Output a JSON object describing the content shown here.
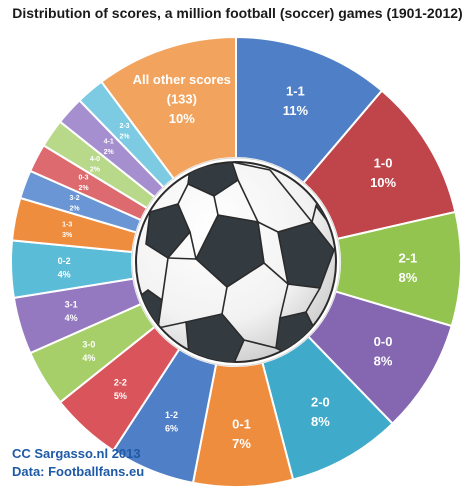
{
  "chart_data": {
    "type": "pie",
    "variant": "donut",
    "title": "Distribution of scores, a million football (soccer) games (1901-2012)",
    "slices": [
      {
        "label": "1-1",
        "value": 11,
        "pct_label": "11%",
        "color": "#4f7fc6"
      },
      {
        "label": "1-0",
        "value": 10,
        "pct_label": "10%",
        "color": "#c0454b"
      },
      {
        "label": "2-1",
        "value": 8,
        "pct_label": "8%",
        "color": "#92c44f"
      },
      {
        "label": "0-0",
        "value": 8,
        "pct_label": "8%",
        "color": "#8466b1"
      },
      {
        "label": "2-0",
        "value": 8,
        "pct_label": "8%",
        "color": "#3faac9"
      },
      {
        "label": "0-1",
        "value": 7,
        "pct_label": "7%",
        "color": "#ef8d3f"
      },
      {
        "label": "1-2",
        "value": 6,
        "pct_label": "6%",
        "color": "#4f7fc6"
      },
      {
        "label": "2-2",
        "value": 5,
        "pct_label": "5%",
        "color": "#d9555b"
      },
      {
        "label": "3-0",
        "value": 4,
        "pct_label": "4%",
        "color": "#a6cf6a"
      },
      {
        "label": "3-1",
        "value": 4,
        "pct_label": "4%",
        "color": "#9478c0"
      },
      {
        "label": "0-2",
        "value": 4,
        "pct_label": "4%",
        "color": "#5bbcd8"
      },
      {
        "label": "1-3",
        "value": 3,
        "pct_label": "3%",
        "color": "#ef8d3f"
      },
      {
        "label": "3-2",
        "value": 2,
        "pct_label": "2%",
        "color": "#6a96d6"
      },
      {
        "label": "0-3",
        "value": 2,
        "pct_label": "2%",
        "color": "#dc6a6e"
      },
      {
        "label": "4-0",
        "value": 2,
        "pct_label": "2%",
        "color": "#b9d98a"
      },
      {
        "label": "4-1",
        "value": 2,
        "pct_label": "2%",
        "color": "#a68fcf"
      },
      {
        "label": "2-3",
        "value": 2,
        "pct_label": "2%",
        "color": "#7ccbe3"
      },
      {
        "label": "All other scores",
        "sublabel": "(133)",
        "value": 10,
        "pct_label": "10%",
        "color": "#f2a45e"
      }
    ]
  },
  "credits": {
    "line1": "CC Sargasso.nl 2013",
    "line2": "Data: Footballfans.eu"
  }
}
